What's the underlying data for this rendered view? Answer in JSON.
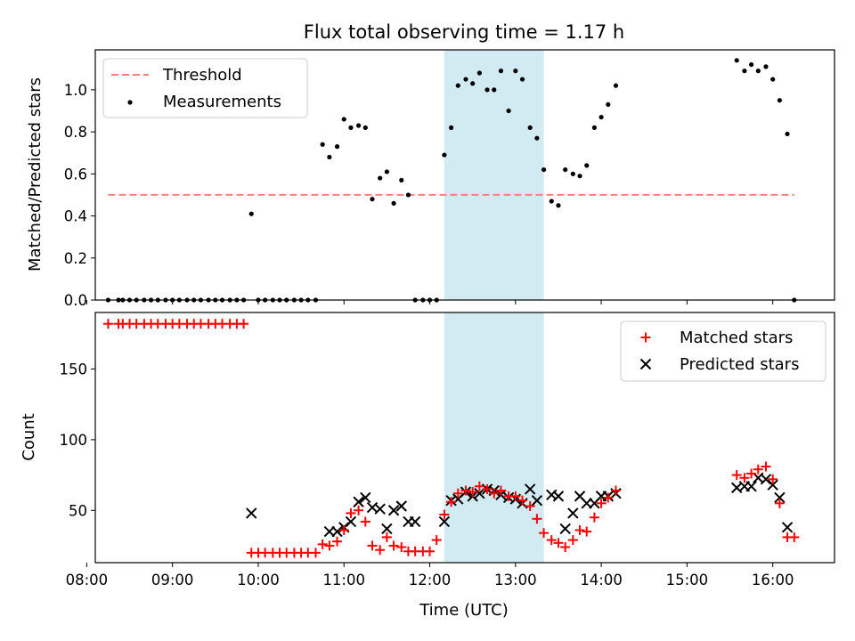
{
  "title": "Flux total observing time = 1.17 h",
  "colors": {
    "threshold": "#ff7f7f",
    "measurements": "#000000",
    "matched": "#ff0000",
    "predicted": "#000000",
    "window": "#add8e6"
  },
  "chart_data": [
    {
      "type": "scatter",
      "panel": "top",
      "ylabel": "Matched/Predicted stars",
      "xlim": [
        8.1,
        16.72
      ],
      "ylim": [
        0.0,
        1.19
      ],
      "yticks": [
        0.0,
        0.2,
        0.4,
        0.6,
        0.8,
        1.0
      ],
      "yticklabels": [
        "0.0",
        "0.2",
        "0.4",
        "0.6",
        "0.8",
        "1.0"
      ],
      "shaded_window": [
        12.17,
        13.33
      ],
      "legend": {
        "position": "top-left",
        "entries": [
          "Threshold",
          "Measurements"
        ]
      },
      "threshold": {
        "name": "Threshold",
        "y": 0.5,
        "x_range": [
          8.25,
          16.25
        ]
      },
      "measurements": {
        "name": "Measurements",
        "x": [
          8.25,
          8.37,
          8.42,
          8.5,
          8.58,
          8.67,
          8.75,
          8.83,
          8.92,
          9.0,
          9.08,
          9.17,
          9.25,
          9.33,
          9.42,
          9.5,
          9.58,
          9.67,
          9.75,
          9.83,
          9.92,
          10.0,
          10.08,
          10.17,
          10.25,
          10.33,
          10.42,
          10.5,
          10.58,
          10.67,
          10.75,
          10.83,
          10.92,
          11.0,
          11.08,
          11.17,
          11.25,
          11.33,
          11.42,
          11.5,
          11.58,
          11.67,
          11.75,
          11.83,
          11.92,
          12.0,
          12.08,
          12.17,
          12.25,
          12.33,
          12.42,
          12.5,
          12.58,
          12.67,
          12.75,
          12.83,
          12.92,
          13.0,
          13.08,
          13.17,
          13.25,
          13.33,
          13.42,
          13.5,
          13.58,
          13.67,
          13.75,
          13.83,
          13.92,
          14.0,
          14.08,
          14.17,
          15.58,
          15.67,
          15.75,
          15.83,
          15.92,
          16.0,
          16.08,
          16.17,
          16.25
        ],
        "y": [
          0.0,
          0.0,
          0.0,
          0.0,
          0.0,
          0.0,
          0.0,
          0.0,
          0.0,
          0.0,
          0.0,
          0.0,
          0.0,
          0.0,
          0.0,
          0.0,
          0.0,
          0.0,
          0.0,
          0.0,
          0.41,
          0.0,
          0.0,
          0.0,
          0.0,
          0.0,
          0.0,
          0.0,
          0.0,
          0.0,
          0.74,
          0.68,
          0.73,
          0.86,
          0.82,
          0.83,
          0.82,
          0.48,
          0.58,
          0.61,
          0.46,
          0.57,
          0.5,
          0.0,
          0.0,
          0.0,
          0.0,
          0.69,
          0.82,
          1.02,
          1.05,
          1.03,
          1.08,
          1.0,
          1.0,
          1.09,
          0.9,
          1.09,
          1.05,
          0.82,
          0.77,
          0.62,
          0.47,
          0.45,
          0.62,
          0.6,
          0.59,
          0.64,
          0.82,
          0.87,
          0.93,
          1.02,
          1.14,
          1.09,
          1.12,
          1.09,
          1.11,
          1.05,
          0.95,
          0.79,
          0.0
        ]
      }
    },
    {
      "type": "scatter",
      "panel": "bottom",
      "xlabel": "Time (UTC)",
      "ylabel": "Count",
      "xlim": [
        8.1,
        16.72
      ],
      "ylim": [
        13,
        190
      ],
      "xticks": [
        8,
        9,
        10,
        11,
        12,
        13,
        14,
        15,
        16
      ],
      "xticklabels": [
        "08:00",
        "09:00",
        "10:00",
        "11:00",
        "12:00",
        "13:00",
        "14:00",
        "15:00",
        "16:00"
      ],
      "yticks": [
        50,
        100,
        150
      ],
      "yticklabels": [
        "50",
        "100",
        "150"
      ],
      "shaded_window": [
        12.17,
        13.33
      ],
      "legend": {
        "position": "top-right",
        "entries": [
          "Matched stars",
          "Predicted stars"
        ]
      },
      "series": [
        {
          "name": "Matched stars",
          "marker": "+",
          "x": [
            8.25,
            8.37,
            8.42,
            8.5,
            8.58,
            8.67,
            8.75,
            8.83,
            8.92,
            9.0,
            9.08,
            9.17,
            9.25,
            9.33,
            9.42,
            9.5,
            9.58,
            9.67,
            9.75,
            9.83,
            9.92,
            10.0,
            10.08,
            10.17,
            10.25,
            10.33,
            10.42,
            10.5,
            10.58,
            10.67,
            10.75,
            10.83,
            10.92,
            11.0,
            11.08,
            11.17,
            11.25,
            11.33,
            11.42,
            11.5,
            11.58,
            11.67,
            11.75,
            11.83,
            11.92,
            12.0,
            12.08,
            12.17,
            12.25,
            12.33,
            12.42,
            12.5,
            12.58,
            12.67,
            12.75,
            12.83,
            12.92,
            13.0,
            13.08,
            13.17,
            13.25,
            13.33,
            13.42,
            13.5,
            13.58,
            13.67,
            13.75,
            13.83,
            13.92,
            14.0,
            14.08,
            14.17,
            15.58,
            15.67,
            15.75,
            15.83,
            15.92,
            16.0,
            16.08,
            16.17,
            16.25
          ],
          "y": [
            182,
            182,
            182,
            182,
            182,
            182,
            182,
            182,
            182,
            182,
            182,
            182,
            182,
            182,
            182,
            182,
            182,
            182,
            182,
            182,
            20,
            20,
            20,
            20,
            20,
            20,
            20,
            20,
            20,
            20,
            26,
            25,
            28,
            36,
            48,
            50,
            42,
            25,
            22,
            31,
            25,
            24,
            21,
            21,
            21,
            21,
            29,
            47,
            56,
            62,
            64,
            63,
            67,
            65,
            62,
            64,
            60,
            60,
            57,
            53,
            44,
            34,
            29,
            27,
            24,
            29,
            36,
            35,
            45,
            55,
            59,
            64,
            75,
            73,
            76,
            79,
            81,
            72,
            55,
            31,
            31
          ]
        },
        {
          "name": "Predicted stars",
          "marker": "x",
          "x": [
            9.92,
            10.83,
            10.92,
            11.0,
            11.08,
            11.17,
            11.25,
            11.33,
            11.42,
            11.5,
            11.58,
            11.67,
            11.75,
            11.83,
            12.17,
            12.25,
            12.33,
            12.42,
            12.5,
            12.58,
            12.67,
            12.75,
            12.83,
            12.92,
            13.0,
            13.08,
            13.17,
            13.25,
            13.42,
            13.5,
            13.58,
            13.67,
            13.75,
            13.83,
            13.92,
            14.0,
            14.08,
            14.17,
            15.58,
            15.67,
            15.75,
            15.83,
            15.92,
            16.0,
            16.08,
            16.17
          ],
          "y": [
            48,
            35,
            35,
            38,
            42,
            56,
            59,
            52,
            51,
            37,
            50,
            53,
            42,
            42,
            42,
            57,
            58,
            63,
            60,
            62,
            65,
            64,
            61,
            59,
            58,
            55,
            65,
            57,
            61,
            60,
            37,
            48,
            60,
            55,
            55,
            60,
            60,
            62,
            66,
            67,
            67,
            73,
            72,
            68,
            59,
            38
          ]
        }
      ]
    }
  ]
}
